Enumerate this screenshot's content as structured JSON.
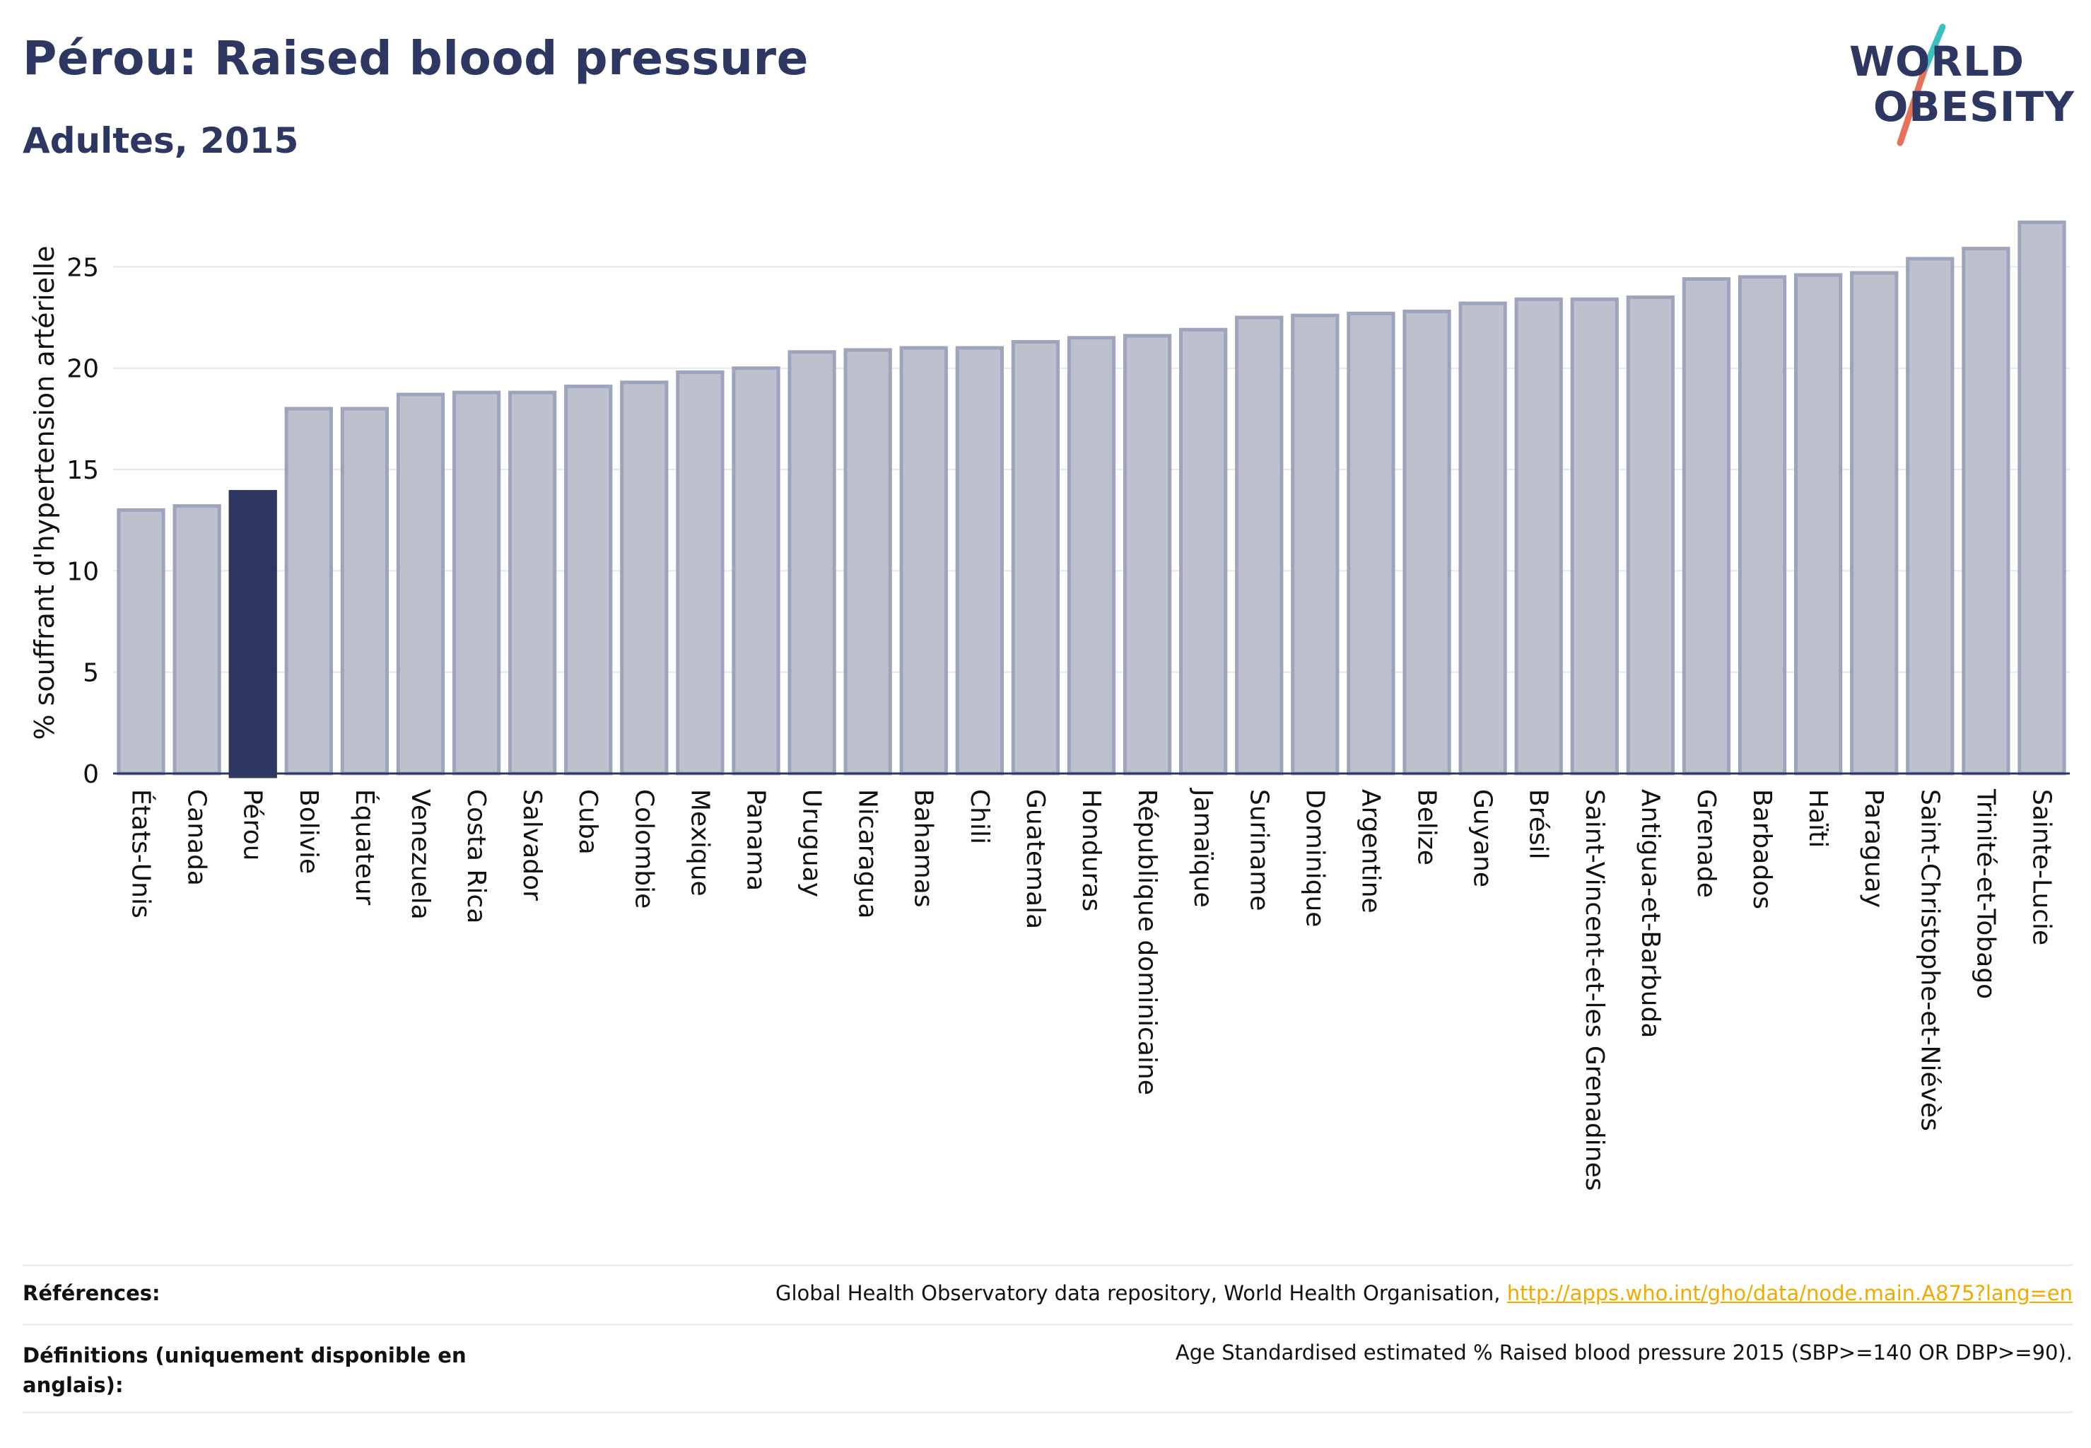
{
  "header": {
    "title": "Pérou: Raised blood pressure",
    "subtitle": "Adultes, 2015",
    "logo_line1": "WORLD",
    "logo_line2": "OBESITY"
  },
  "colors": {
    "highlight": "#2d3761",
    "bar_fill": "#bdc1ce",
    "bar_stroke": "#9ea4bb",
    "grid": "#e5e7ed",
    "link": "#f2a900",
    "logo_teal": "#3bbfbf",
    "logo_coral": "#e8715c"
  },
  "chart_data": {
    "type": "bar",
    "title": "Pérou: Raised blood pressure",
    "subtitle": "Adultes, 2015",
    "xlabel": "",
    "ylabel": "% souffrant d'hypertension artérielle",
    "ylim": [
      0,
      27.7
    ],
    "yticks": [
      0,
      5,
      10,
      15,
      20,
      25
    ],
    "grid": true,
    "highlight": "Pérou",
    "categories": [
      "États-Unis",
      "Canada",
      "Pérou",
      "Bolivie",
      "Équateur",
      "Venezuela",
      "Costa Rica",
      "Salvador",
      "Cuba",
      "Colombie",
      "Mexique",
      "Panama",
      "Uruguay",
      "Nicaragua",
      "Bahamas",
      "Chili",
      "Guatemala",
      "Honduras",
      "République dominicaine",
      "Jamaïque",
      "Suriname",
      "Dominique",
      "Argentine",
      "Belize",
      "Guyane",
      "Brésil",
      "Saint-Vincent-et-les Grenadines",
      "Antigua-et-Barbuda",
      "Grenade",
      "Barbados",
      "Haïti",
      "Paraguay",
      "Saint-Christophe-et-Niévès",
      "Trinité-et-Tobago",
      "Sainte-Lucie"
    ],
    "values": [
      13.0,
      13.2,
      13.9,
      18.0,
      18.0,
      18.7,
      18.8,
      18.8,
      19.1,
      19.3,
      19.8,
      20.0,
      20.8,
      20.9,
      21.0,
      21.0,
      21.3,
      21.5,
      21.6,
      21.9,
      22.5,
      22.6,
      22.7,
      22.8,
      23.2,
      23.4,
      23.4,
      23.5,
      24.4,
      24.5,
      24.6,
      24.7,
      25.4,
      25.9,
      27.2
    ]
  },
  "footer": {
    "references_label": "Références:",
    "references_text": "Global Health Observatory data repository, World Health Organisation, ",
    "references_link": "http://apps.who.int/gho/data/node.main.A875?lang=en",
    "definitions_label": "Définitions (uniquement disponible en anglais):",
    "definitions_text": "Age Standardised estimated % Raised blood pressure 2015 (SBP>=140 OR DBP>=90)."
  }
}
